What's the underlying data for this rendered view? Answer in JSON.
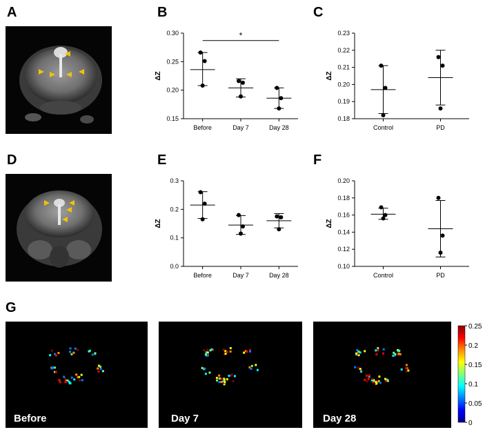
{
  "panels": {
    "a": "A",
    "b": "B",
    "c": "C",
    "d": "D",
    "e": "E",
    "f": "F",
    "g": "G"
  },
  "chart_data": [
    {
      "panel": "B",
      "type": "scatter",
      "categories": [
        "Before",
        "Day 7",
        "Day 28"
      ],
      "ylabel": "ΔZ",
      "ylim": [
        0.15,
        0.3
      ],
      "yticks": [
        "0.15",
        "0.20",
        "0.25",
        "0.30"
      ],
      "points": [
        [
          0.266,
          0.251,
          0.208
        ],
        [
          0.216,
          0.213,
          0.189
        ],
        [
          0.204,
          0.186,
          0.168
        ]
      ],
      "means": [
        0.236,
        0.204,
        0.186
      ],
      "errors": [
        [
          0.208,
          0.266
        ],
        [
          0.188,
          0.22
        ],
        [
          0.168,
          0.204
        ]
      ],
      "annotation": "*"
    },
    {
      "panel": "C",
      "type": "scatter",
      "categories": [
        "Control",
        "PD"
      ],
      "ylabel": "ΔZ",
      "ylim": [
        0.18,
        0.23
      ],
      "yticks": [
        "0.18",
        "0.19",
        "0.20",
        "0.21",
        "0.22",
        "0.23"
      ],
      "points": [
        [
          0.211,
          0.198,
          0.182
        ],
        [
          0.216,
          0.211,
          0.186
        ]
      ],
      "means": [
        0.197,
        0.204
      ],
      "errors": [
        [
          0.183,
          0.211
        ],
        [
          0.188,
          0.22
        ]
      ]
    },
    {
      "panel": "E",
      "type": "scatter",
      "categories": [
        "Before",
        "Day 7",
        "Day 28"
      ],
      "ylabel": "ΔZ",
      "ylim": [
        0.0,
        0.3
      ],
      "yticks": [
        "0.0",
        "0.1",
        "0.2",
        "0.3"
      ],
      "points": [
        [
          0.26,
          0.22,
          0.165
        ],
        [
          0.18,
          0.14,
          0.115
        ],
        [
          0.175,
          0.172,
          0.13
        ]
      ],
      "means": [
        0.215,
        0.145,
        0.16
      ],
      "errors": [
        [
          0.168,
          0.262
        ],
        [
          0.112,
          0.178
        ],
        [
          0.135,
          0.185
        ]
      ]
    },
    {
      "panel": "F",
      "type": "scatter",
      "categories": [
        "Control",
        "PD"
      ],
      "ylabel": "ΔZ",
      "ylim": [
        0.1,
        0.2
      ],
      "yticks": [
        "0.10",
        "0.12",
        "0.14",
        "0.16",
        "0.18",
        "0.20"
      ],
      "points": [
        [
          0.169,
          0.16,
          0.156
        ],
        [
          0.18,
          0.136,
          0.116
        ]
      ],
      "means": [
        0.161,
        0.144
      ],
      "errors": [
        [
          0.155,
          0.168
        ],
        [
          0.111,
          0.177
        ]
      ]
    }
  ],
  "heatmaps": {
    "labels": [
      "Before",
      "Day 7",
      "Day 28"
    ],
    "colorbar_ticks": [
      "0.25",
      "0.2",
      "0.15",
      "0.1",
      "0.05",
      "0"
    ],
    "colorbar_colors": [
      "#8b0000",
      "#ff0000",
      "#ff8c00",
      "#ffff00",
      "#7fff7f",
      "#00ffff",
      "#0080ff",
      "#0000ff",
      "#00008b"
    ]
  },
  "arrow_color": "#f2c200"
}
